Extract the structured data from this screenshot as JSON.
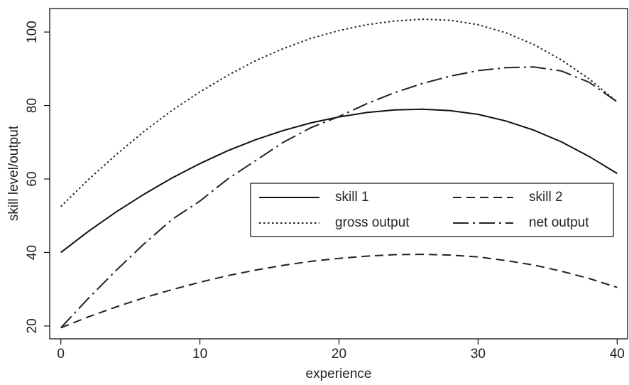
{
  "chart_data": {
    "type": "line",
    "xlabel": "experience",
    "ylabel": "skill level/output",
    "x": [
      0,
      2,
      4,
      6,
      8,
      10,
      12,
      14,
      16,
      18,
      20,
      22,
      24,
      26,
      28,
      30,
      32,
      34,
      36,
      38,
      40
    ],
    "series": [
      {
        "name": "skill 1",
        "color": "#111111",
        "style": "solid",
        "values": [
          40.0,
          45.8,
          51.1,
          55.9,
          60.3,
          64.2,
          67.7,
          70.7,
          73.2,
          75.3,
          76.9,
          78.1,
          78.8,
          79.0,
          78.6,
          77.6,
          75.8,
          73.3,
          70.1,
          66.1,
          61.5
        ]
      },
      {
        "name": "skill 2",
        "color": "#222222",
        "style": "dashed",
        "values": [
          19.5,
          22.5,
          25.2,
          27.7,
          29.9,
          31.9,
          33.7,
          35.2,
          36.5,
          37.6,
          38.4,
          39.0,
          39.4,
          39.5,
          39.3,
          38.8,
          37.8,
          36.6,
          34.9,
          32.9,
          30.5
        ]
      },
      {
        "name": "gross output",
        "color": "#222222",
        "style": "dotted",
        "values": [
          52.5,
          59.9,
          66.7,
          73.0,
          78.7,
          83.7,
          88.2,
          92.2,
          95.5,
          98.3,
          100.4,
          102.0,
          103.0,
          103.5,
          103.2,
          102.0,
          99.8,
          96.6,
          92.4,
          87.2,
          81.0
        ]
      },
      {
        "name": "net output",
        "color": "#222222",
        "style": "dashdot",
        "values": [
          19.5,
          27.6,
          35.2,
          42.4,
          49.0,
          54.0,
          60.0,
          65.0,
          70.0,
          74.0,
          77.0,
          80.5,
          83.5,
          86.0,
          88.0,
          89.5,
          90.3,
          90.5,
          89.4,
          86.3,
          81.0
        ]
      }
    ],
    "xlim": [
      -0.8,
      40.75
    ],
    "ylim": [
      16.5,
      106.4
    ],
    "xticks": [
      0,
      10,
      20,
      30,
      40
    ],
    "yticks": [
      20,
      40,
      60,
      80,
      100
    ],
    "grid": false,
    "legend": "center-right"
  }
}
